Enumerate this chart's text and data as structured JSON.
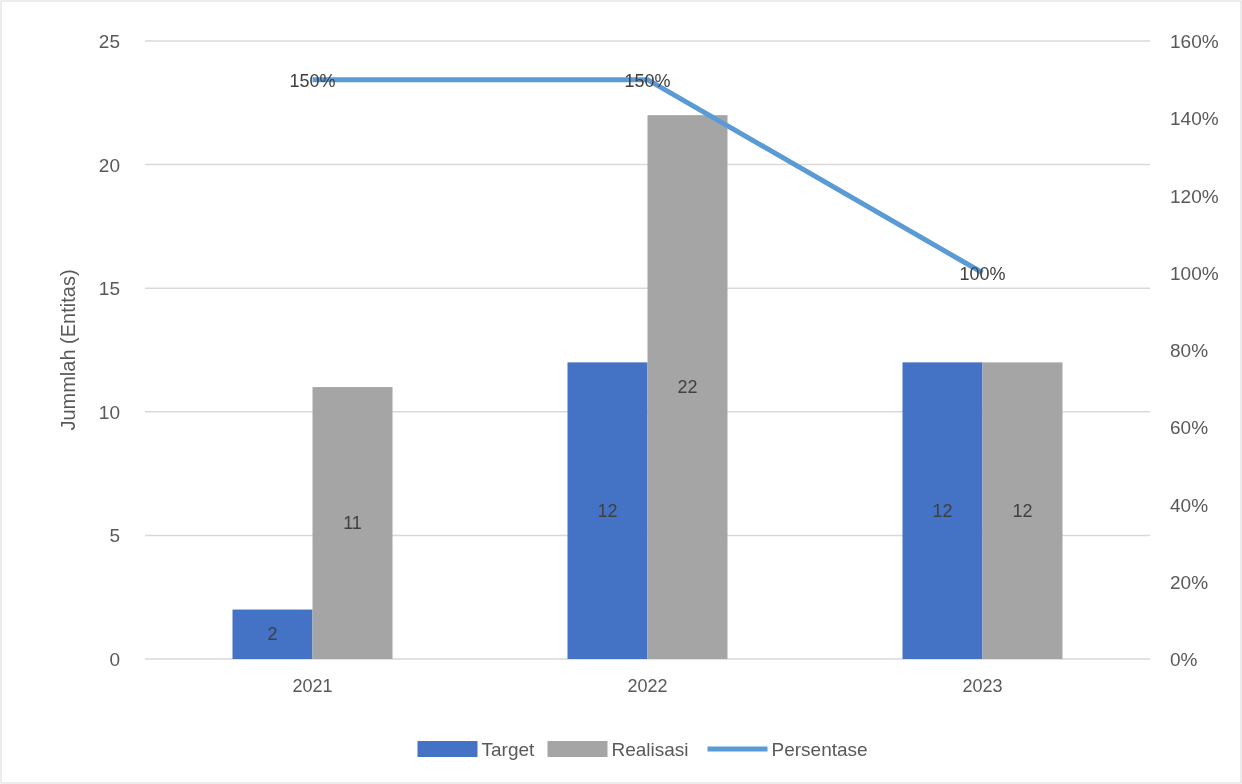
{
  "chart_data": {
    "type": "bar",
    "ylabel": "Jummlah (Entitas)",
    "categories": [
      "2021",
      "2022",
      "2023"
    ],
    "series": [
      {
        "name": "Target",
        "color": "#4472c4",
        "values": [
          2,
          12,
          12
        ],
        "value_labels": [
          "2",
          "12",
          "12"
        ]
      },
      {
        "name": "Realisasi",
        "color": "#a5a5a5",
        "values": [
          11,
          22,
          12
        ],
        "value_labels": [
          "11",
          "22",
          "12"
        ]
      },
      {
        "name": "Persentase",
        "type": "line",
        "axis": "y2",
        "color": "#5b9bd5",
        "values": [
          150,
          150,
          100
        ],
        "value_labels": [
          "150%",
          "150%",
          "100%"
        ]
      }
    ],
    "ylim": [
      0,
      25
    ],
    "yticks": [
      0,
      5,
      10,
      15,
      20,
      25
    ],
    "y2lim": [
      0,
      160
    ],
    "y2ticks": [
      {
        "value": 0,
        "label": "0%"
      },
      {
        "value": 20,
        "label": "20%"
      },
      {
        "value": 40,
        "label": "40%"
      },
      {
        "value": 60,
        "label": "60%"
      },
      {
        "value": 80,
        "label": "80%"
      },
      {
        "value": 100,
        "label": "100%"
      },
      {
        "value": 120,
        "label": "120%"
      },
      {
        "value": 140,
        "label": "140%"
      },
      {
        "value": 160,
        "label": "160%"
      }
    ],
    "grid": "y",
    "legend": "bottom",
    "marker": "none",
    "line_style": "solid"
  }
}
